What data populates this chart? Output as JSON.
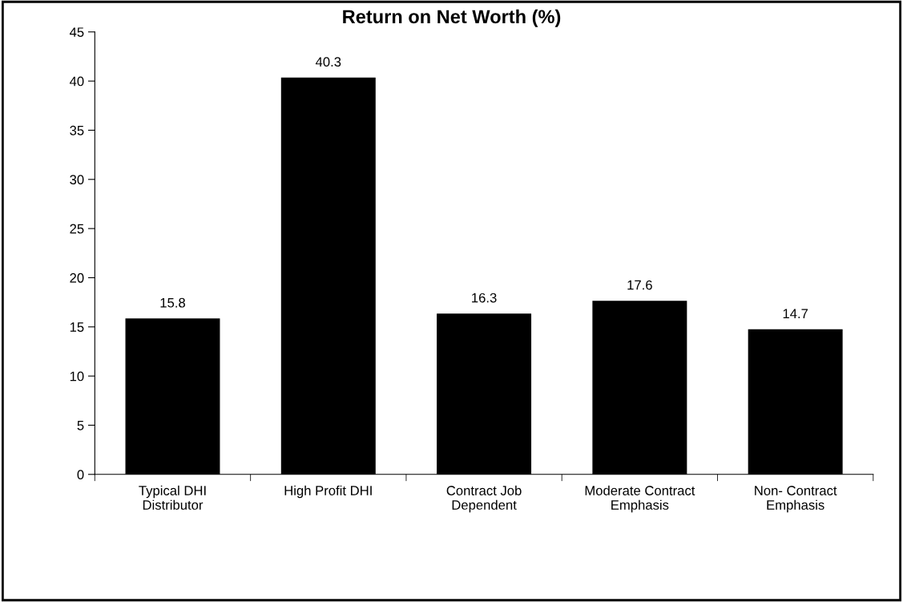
{
  "chart_data": {
    "type": "bar",
    "title": "Return on Net Worth (%)",
    "categories": [
      "Typical DHI\nDistributor",
      "High Profit DHI",
      "Contract Job\nDependent",
      "Moderate Contract\nEmphasis",
      "Non- Contract\nEmphasis"
    ],
    "values": [
      15.8,
      40.3,
      16.3,
      17.6,
      14.7
    ],
    "color": "#000000",
    "data_labels": true,
    "ylim": [
      0,
      45
    ],
    "yticks": [
      0,
      5,
      10,
      15,
      20,
      25,
      30,
      35,
      40,
      45
    ],
    "grid": false,
    "legend": false
  }
}
